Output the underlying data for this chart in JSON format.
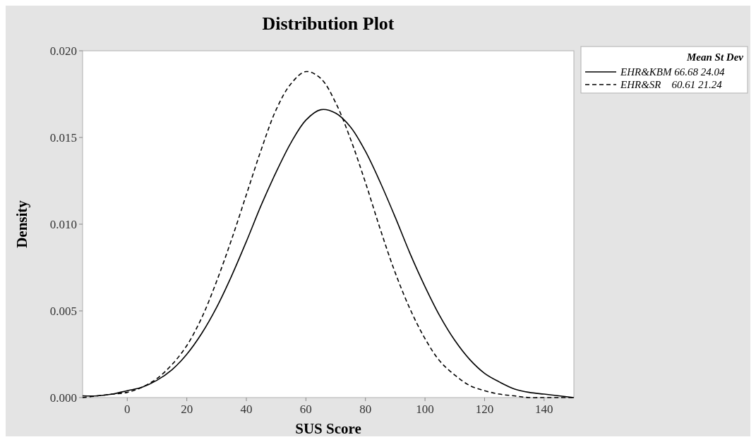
{
  "chart_data": {
    "type": "line",
    "title": "Distribution Plot",
    "xlabel": "SUS Score",
    "ylabel": "Density",
    "legend_title": "Mean St Dev",
    "legend": "right",
    "grid": false,
    "x": [
      -15,
      -10,
      -5,
      0,
      5,
      10,
      15,
      20,
      25,
      30,
      35,
      40,
      45,
      50,
      55,
      60,
      65,
      70,
      75,
      80,
      85,
      90,
      95,
      100,
      105,
      110,
      115,
      120,
      125,
      130,
      135,
      140,
      145,
      150
    ],
    "xlim": [
      -15,
      150
    ],
    "xticks": [
      0,
      20,
      40,
      60,
      80,
      100,
      120,
      140
    ],
    "ylim": [
      0,
      0.02
    ],
    "yticks": [
      {
        "value": 0,
        "label": "0.000"
      },
      {
        "value": 0.005,
        "label": "0.005"
      },
      {
        "value": 0.01,
        "label": "0.010"
      },
      {
        "value": 0.015,
        "label": "0.015"
      },
      {
        "value": 0.02,
        "label": "0.020"
      }
    ],
    "series": [
      {
        "name": "EHR&KBM 66.68 24.04",
        "color": "#000000",
        "line_style": "solid",
        "values": [
          0.0001,
          0.0001,
          0.0002,
          0.0004,
          0.0006,
          0.001,
          0.0016,
          0.0025,
          0.0037,
          0.0052,
          0.007,
          0.009,
          0.0111,
          0.013,
          0.0147,
          0.016,
          0.0166,
          0.0164,
          0.0156,
          0.0142,
          0.0124,
          0.0104,
          0.0083,
          0.0064,
          0.0047,
          0.0033,
          0.0022,
          0.0014,
          0.0009,
          0.0005,
          0.0003,
          0.0002,
          0.0001,
          0
        ]
      },
      {
        "name": "EHR&SR    60.61 21.24",
        "color": "#000000",
        "line_style": "dashed",
        "values": [
          0,
          0.0001,
          0.0002,
          0.0003,
          0.0006,
          0.0011,
          0.0019,
          0.003,
          0.0046,
          0.0067,
          0.0091,
          0.0117,
          0.0143,
          0.0166,
          0.0181,
          0.0188,
          0.0184,
          0.017,
          0.0149,
          0.0124,
          0.0097,
          0.0072,
          0.0051,
          0.0034,
          0.0021,
          0.0013,
          0.0007,
          0.0004,
          0.0002,
          0.0001,
          0,
          0,
          0,
          0
        ]
      }
    ]
  }
}
